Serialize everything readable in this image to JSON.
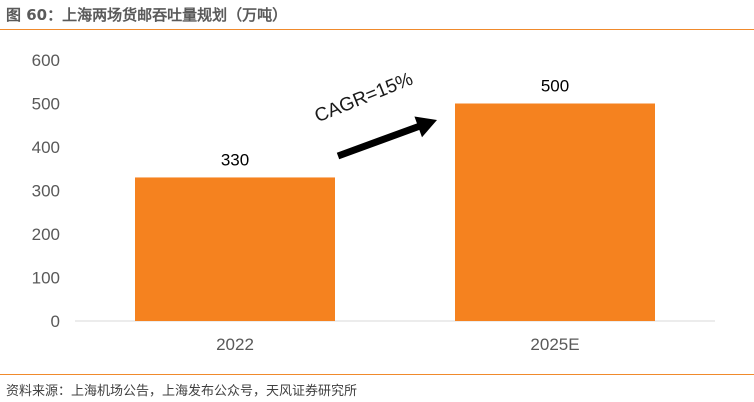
{
  "figure": {
    "title": "图 60：上海两场货邮吞吐量规划（万吨）",
    "source": "资料来源：上海机场公告，上海发布公众号，天风证券研究所"
  },
  "colors": {
    "bar": "#f5821f",
    "rule": "#f08a2c",
    "axis": "#d9d9d9",
    "arrow": "#000000"
  },
  "chart_data": {
    "type": "bar",
    "categories": [
      "2022",
      "2025E"
    ],
    "values": [
      330,
      500
    ],
    "data_labels": [
      "330",
      "500"
    ],
    "ylim": [
      0,
      600
    ],
    "yticks": [
      0,
      100,
      200,
      300,
      400,
      500,
      600
    ],
    "grid": false,
    "legend": "none",
    "annotation": {
      "text": "CAGR=15%",
      "shape": "arrow",
      "direction": "up-right"
    }
  }
}
